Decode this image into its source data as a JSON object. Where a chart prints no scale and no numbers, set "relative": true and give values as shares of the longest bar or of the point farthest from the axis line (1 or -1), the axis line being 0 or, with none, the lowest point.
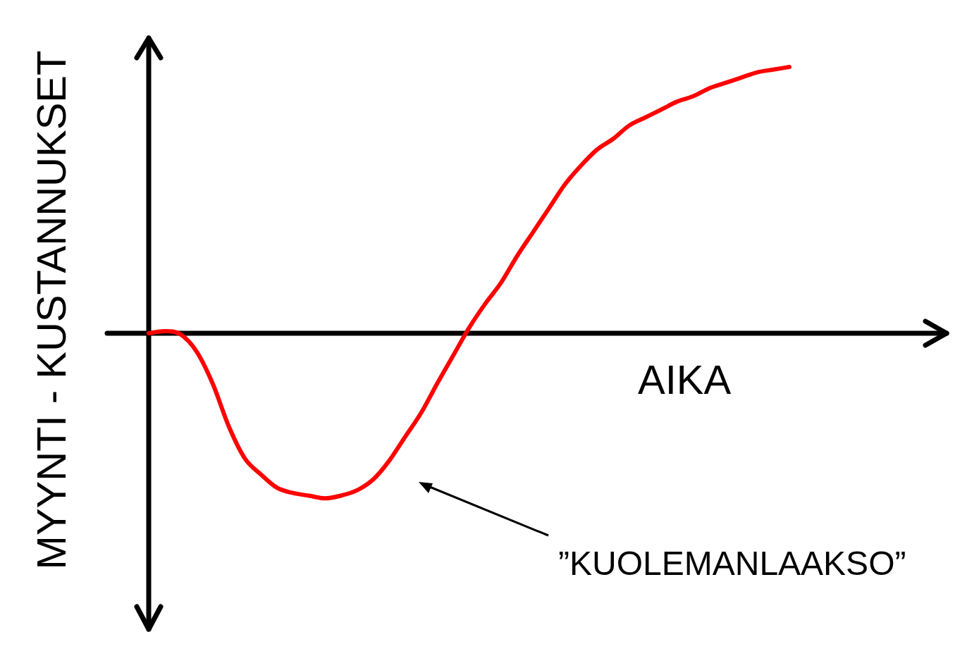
{
  "chart_data": {
    "type": "line",
    "relative": true,
    "xlabel": "AIKA",
    "ylabel": "MYYNTI - KUSTANNUKSET",
    "annotations": [
      "”KUOLEMANLAAKSO”"
    ],
    "marker": "none",
    "line_style": "solid",
    "categories": [
      null,
      null,
      null,
      null,
      null,
      null,
      null,
      null,
      null,
      null,
      null,
      null,
      null,
      null,
      null,
      null,
      null,
      null,
      null,
      null,
      null,
      null,
      null,
      null,
      null,
      null,
      null,
      null,
      null,
      null,
      null,
      null,
      null,
      null,
      null,
      null,
      null,
      null,
      null,
      null,
      null
    ],
    "series": [
      {
        "color": "#ff0000",
        "values": [
          0,
          0.008,
          -0.005,
          -0.07,
          -0.19,
          -0.35,
          -0.47,
          -0.53,
          -0.58,
          -0.6,
          -0.61,
          -0.62,
          -0.61,
          -0.59,
          -0.55,
          -0.48,
          -0.39,
          -0.3,
          -0.19,
          -0.085,
          0.02,
          0.11,
          0.19,
          0.29,
          0.38,
          0.47,
          0.56,
          0.63,
          0.69,
          0.73,
          0.78,
          0.81,
          0.84,
          0.87,
          0.89,
          0.92,
          0.94,
          0.96,
          0.98,
          0.99,
          1
        ]
      }
    ]
  }
}
